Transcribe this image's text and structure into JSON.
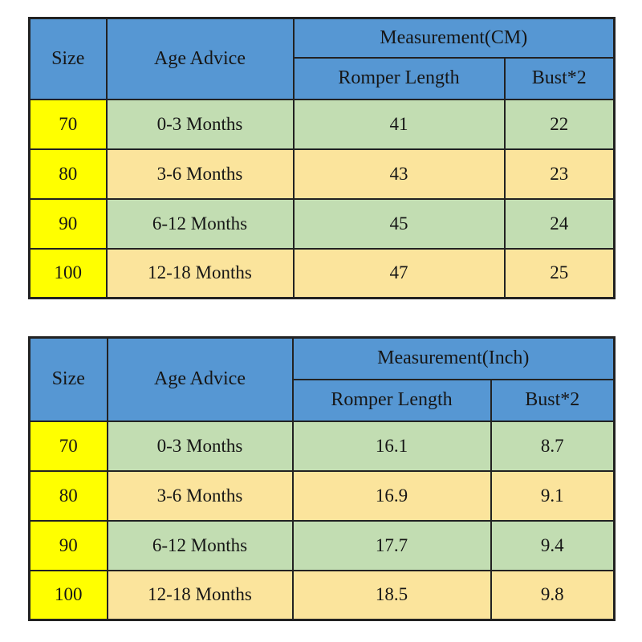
{
  "colors": {
    "header-blue": "#5697d3",
    "size-yellow": "#ffff00",
    "row-green": "#c2ddb2",
    "row-wheat": "#fbe49c",
    "grid": "#222222",
    "ink": "#161616"
  },
  "tables": [
    {
      "id": "size-chart-cm",
      "headers": {
        "size": "Size",
        "age_advice": "Age Advice",
        "measurement_group": "Measurement(CM)",
        "romper_length": "Romper Length",
        "bust": "Bust*2"
      },
      "rows": [
        {
          "size": "70",
          "age": "0-3 Months",
          "romper_length": "41",
          "bust": "22"
        },
        {
          "size": "80",
          "age": "3-6 Months",
          "romper_length": "43",
          "bust": "23"
        },
        {
          "size": "90",
          "age": "6-12 Months",
          "romper_length": "45",
          "bust": "24"
        },
        {
          "size": "100",
          "age": "12-18 Months",
          "romper_length": "47",
          "bust": "25"
        }
      ]
    },
    {
      "id": "size-chart-inch",
      "headers": {
        "size": "Size",
        "age_advice": "Age Advice",
        "measurement_group": "Measurement(Inch)",
        "romper_length": "Romper Length",
        "bust": "Bust*2"
      },
      "rows": [
        {
          "size": "70",
          "age": "0-3 Months",
          "romper_length": "16.1",
          "bust": "8.7"
        },
        {
          "size": "80",
          "age": "3-6 Months",
          "romper_length": "16.9",
          "bust": "9.1"
        },
        {
          "size": "90",
          "age": "6-12 Months",
          "romper_length": "17.7",
          "bust": "9.4"
        },
        {
          "size": "100",
          "age": "12-18 Months",
          "romper_length": "18.5",
          "bust": "9.8"
        }
      ]
    }
  ]
}
